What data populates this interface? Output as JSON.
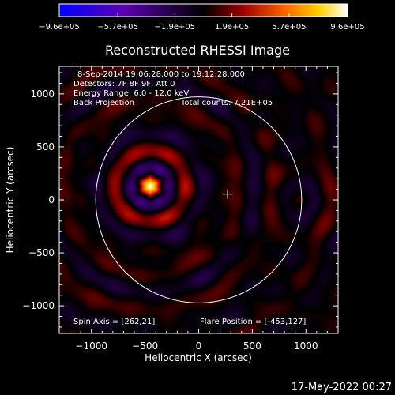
{
  "chart_data": {
    "type": "heatmap",
    "title": "Reconstructed RHESSI Image",
    "xlabel": "Heliocentric X (arcsec)",
    "ylabel": "Heliocentric Y (arcsec)",
    "xlim": [
      -1300,
      1300
    ],
    "ylim": [
      -1260,
      1260
    ],
    "x_ticks": [
      -1000,
      -500,
      0,
      500,
      1000
    ],
    "y_ticks": [
      -1000,
      -500,
      0,
      500,
      1000
    ],
    "x_tick_labels": [
      "−1000",
      "−500",
      "0",
      "500",
      "1000"
    ],
    "y_tick_labels": [
      "−1000",
      "−500",
      "0",
      "500",
      "1000"
    ],
    "colorbar": {
      "range": [
        -960000,
        960000
      ],
      "tick_values": [
        -960000,
        -570000,
        -190000,
        190000,
        570000,
        960000
      ],
      "tick_labels": [
        "−9.6e+05",
        "−5.7e+05",
        "−1.9e+05",
        "1.9e+05",
        "5.7e+05",
        "9.6e+05"
      ],
      "colormap": [
        "#0000ff",
        "#5a00b0",
        "#000000",
        "#a00000",
        "#ff6000",
        "#ffd000",
        "#ffffff"
      ]
    },
    "solar_limb": {
      "center": [
        0,
        0
      ],
      "radius_arcsec": 960
    },
    "sun_center_marker": [
      270,
      55
    ],
    "sources": [
      {
        "label": "flare",
        "x": -453,
        "y": 127
      }
    ],
    "annotations": {
      "time_range": "8-Sep-2014 19:06:28.000 to 19:12:28.000",
      "detectors": "Detectors: 7F 8F 9F, Att 0",
      "energy_range": "Energy Range: 6.0 - 12.0 keV",
      "method": "Back Projection",
      "total_counts": "Total counts: 7.21E+05",
      "spin_axis": "Spin Axis = [262,21]",
      "flare_position": "Flare Position = [-453,127]"
    },
    "grid": false
  },
  "footer": {
    "timestamp": "17-May-2022 00:27"
  },
  "colors": {
    "background": "#000000",
    "foreground": "#ffffff"
  }
}
